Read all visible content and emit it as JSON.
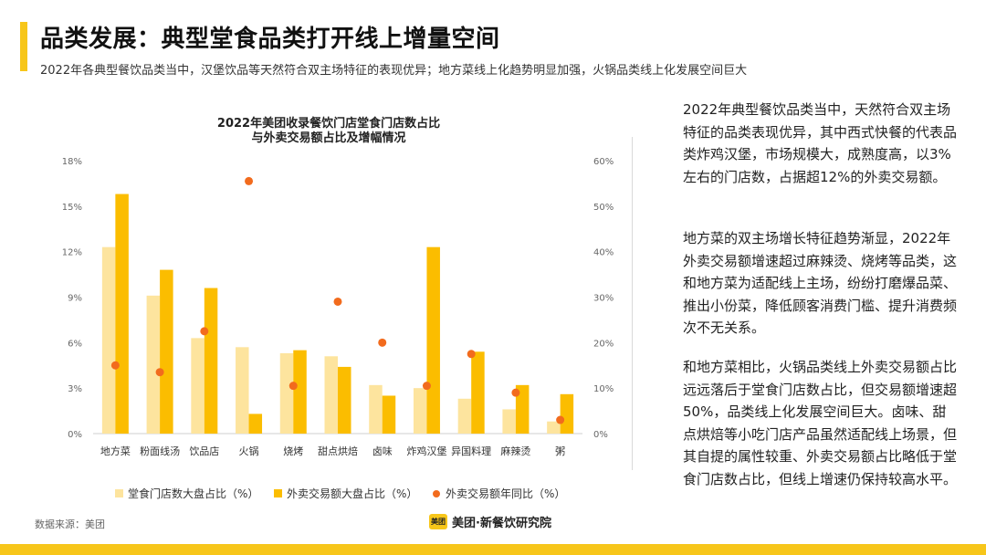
{
  "title": "品类发展：典型堂食品类打开线上增量空间",
  "subtitle": "2022年各典型餐饮品类当中，汉堡饮品等天然符合双主场特征的表现优异；地方菜线上化趋势明显加强，火锅品类线上化发展空间巨大",
  "colors": {
    "accent": "#f7c61a",
    "bar_light": "#fde49e",
    "bar_dark": "#fbbd00",
    "dot": "#f26b1d"
  },
  "chart_data": {
    "type": "bar",
    "title_line1": "2022年美团收录餐饮门店堂食门店数占比",
    "title_line2": "与外卖交易额占比及增幅情况",
    "categories": [
      "地方菜",
      "粉面线汤",
      "饮品店",
      "火锅",
      "烧烤",
      "甜点烘焙",
      "卤味",
      "炸鸡汉堡",
      "异国料理",
      "麻辣烫",
      "粥"
    ],
    "series": [
      {
        "name": "堂食门店数大盘占比（%）",
        "axis": "left",
        "kind": "bar",
        "values": [
          12.3,
          9.1,
          6.3,
          5.7,
          5.3,
          5.1,
          3.2,
          3.0,
          2.3,
          1.6,
          0.8
        ]
      },
      {
        "name": "外卖交易额大盘占比（%）",
        "axis": "left",
        "kind": "bar",
        "values": [
          15.8,
          10.8,
          9.6,
          1.3,
          5.5,
          4.4,
          2.5,
          12.3,
          5.4,
          3.2,
          2.6
        ]
      },
      {
        "name": "外卖交易额年同比（%）",
        "axis": "right",
        "kind": "dot",
        "values": [
          15,
          13.5,
          22.5,
          55.5,
          10.5,
          29,
          20,
          10.5,
          17.5,
          9,
          3
        ]
      }
    ],
    "y_left": {
      "min": 0,
      "max": 18,
      "ticks": [
        "0%",
        "3%",
        "6%",
        "9%",
        "12%",
        "15%",
        "18%"
      ]
    },
    "y_right": {
      "min": 0,
      "max": 60,
      "ticks": [
        "0%",
        "10%",
        "20%",
        "30%",
        "40%",
        "50%",
        "60%"
      ]
    }
  },
  "paragraphs": [
    "2022年典型餐饮品类当中，天然符合双主场特征的品类表现优异，其中西式快餐的代表品类炸鸡汉堡，市场规模大，成熟度高，以3%左右的门店数，占据超12%的外卖交易额。",
    "地方菜的双主场增长特征趋势渐显，2022年外卖交易额增速超过麻辣烫、烧烤等品类，这和地方菜为适配线上主场，纷纷打磨爆品菜、推出小份菜，降低顾客消费门槛、提升消费频次不无关系。",
    "和地方菜相比，火锅品类线上外卖交易额占比远远落后于堂食门店数占比，但交易额增速超50%，品类线上化发展空间巨大。卤味、甜点烘焙等小吃门店产品虽然适配线上场景，但其自提的属性较重、外卖交易额占比略低于堂食门店数占比，但线上增速仍保持较高水平。"
  ],
  "footer": {
    "source": "数据来源：美团",
    "logo_text": "美团",
    "brand": "美团·新餐饮研究院"
  }
}
